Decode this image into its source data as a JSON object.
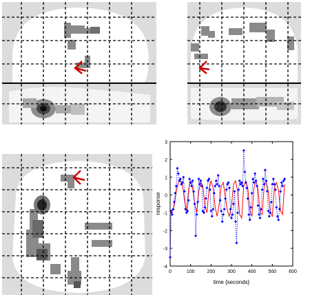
{
  "glass_brain": {
    "views": [
      "sagittal",
      "coronal",
      "axial"
    ]
  },
  "chart_data": {
    "type": "line",
    "xlabel": "time {seconds}",
    "ylabel": "response",
    "xlim": [
      0,
      600
    ],
    "ylim": [
      -4,
      3
    ],
    "xticks": [
      "0",
      "100",
      "200",
      "300",
      "400",
      "500",
      "600"
    ],
    "yticks": [
      "3",
      "2",
      "1",
      "0",
      "-1",
      "-2",
      "-3",
      "-4"
    ],
    "grid": false,
    "series": [
      {
        "style": "fitted-response",
        "color": "#ff0000",
        "x": [
          0,
          10,
          20,
          30,
          40,
          50,
          60,
          70,
          80,
          90,
          100,
          110,
          120,
          130,
          140,
          150,
          160,
          170,
          180,
          190,
          200,
          210,
          220,
          230,
          240,
          250,
          260,
          270,
          280,
          290,
          300,
          310,
          320,
          330,
          340,
          350,
          360,
          370,
          380,
          390,
          400,
          410,
          420,
          430,
          440,
          450,
          460,
          470,
          480,
          490,
          500,
          510,
          520,
          530,
          540,
          550,
          560
        ],
        "values": [
          -1.0,
          -0.9,
          -0.6,
          0.2,
          0.7,
          0.8,
          0.6,
          -0.3,
          -0.9,
          0.3,
          0.8,
          0.4,
          -0.5,
          -1.0,
          0.2,
          0.7,
          0.5,
          -0.6,
          -1.0,
          0.3,
          0.8,
          0.4,
          -0.7,
          -1.2,
          -0.5,
          0.5,
          0.7,
          -0.1,
          -0.9,
          -1.2,
          -0.6,
          0.6,
          0.8,
          0.2,
          -1.1,
          -1.3,
          0.5,
          0.8,
          0.4,
          -0.9,
          -1.2,
          0.4,
          0.8,
          0.3,
          -1.0,
          -1.1,
          0.5,
          0.8,
          0.2,
          -1.0,
          -1.2,
          0.4,
          0.7,
          0.3,
          -0.9,
          -1.1,
          0.6
        ]
      },
      {
        "style": "observed-data",
        "color": "#0000ff",
        "x": [
          0,
          5,
          10,
          15,
          20,
          25,
          30,
          35,
          40,
          45,
          50,
          55,
          60,
          65,
          70,
          75,
          80,
          85,
          90,
          95,
          100,
          105,
          110,
          115,
          120,
          125,
          130,
          135,
          140,
          145,
          150,
          155,
          160,
          165,
          170,
          175,
          180,
          185,
          190,
          195,
          200,
          205,
          210,
          215,
          220,
          225,
          230,
          235,
          240,
          245,
          250,
          255,
          260,
          265,
          270,
          275,
          280,
          285,
          290,
          295,
          300,
          305,
          310,
          315,
          320,
          325,
          330,
          335,
          340,
          345,
          350,
          355,
          360,
          365,
          370,
          375,
          380,
          385,
          390,
          395,
          400,
          405,
          410,
          415,
          420,
          425,
          430,
          435,
          440,
          445,
          450,
          455,
          460,
          465,
          470,
          475,
          480,
          485,
          490,
          495,
          500,
          505,
          510,
          515,
          520,
          525,
          530,
          535,
          540,
          545,
          550,
          555,
          560
        ],
        "values": [
          -3.5,
          -0.9,
          -1.1,
          -0.8,
          -0.4,
          0.1,
          0.5,
          1.5,
          1.2,
          0.8,
          0.9,
          0.6,
          0.7,
          1.0,
          0.2,
          -0.8,
          -1.0,
          -0.9,
          -0.3,
          0.9,
          0.7,
          0.5,
          0.8,
          0.2,
          -0.5,
          -2.3,
          -1.1,
          -0.4,
          0.9,
          0.6,
          0.8,
          0.5,
          -0.9,
          -1.0,
          -0.7,
          -0.2,
          0.4,
          0.8,
          0.9,
          0.3,
          -0.9,
          -1.2,
          -0.8,
          0.1,
          0.5,
          0.8,
          0.6,
          1.1,
          0.5,
          -0.3,
          -0.9,
          -1.5,
          -1.1,
          -0.8,
          -0.2,
          0.3,
          0.6,
          0.7,
          0.4,
          -0.8,
          -1.3,
          -1.1,
          -0.5,
          0.2,
          -1.5,
          -2.7,
          -1.0,
          0.3,
          0.8,
          0.6,
          0.7,
          0.5,
          2.5,
          1.3,
          0.7,
          0.4,
          -0.2,
          -1.1,
          -1.4,
          -0.7,
          0.1,
          0.9,
          0.7,
          1.2,
          0.8,
          0.5,
          -0.6,
          -1.1,
          -1.3,
          -0.8,
          0.3,
          0.9,
          0.6,
          1.4,
          0.8,
          0.2,
          -0.9,
          -1.2,
          -1.0,
          -0.4,
          0.6,
          0.9,
          0.6,
          0.3,
          -0.7,
          -1.2,
          -1.4,
          -0.8,
          0.2,
          0.7,
          0.5,
          0.8,
          0.9
        ]
      }
    ]
  }
}
